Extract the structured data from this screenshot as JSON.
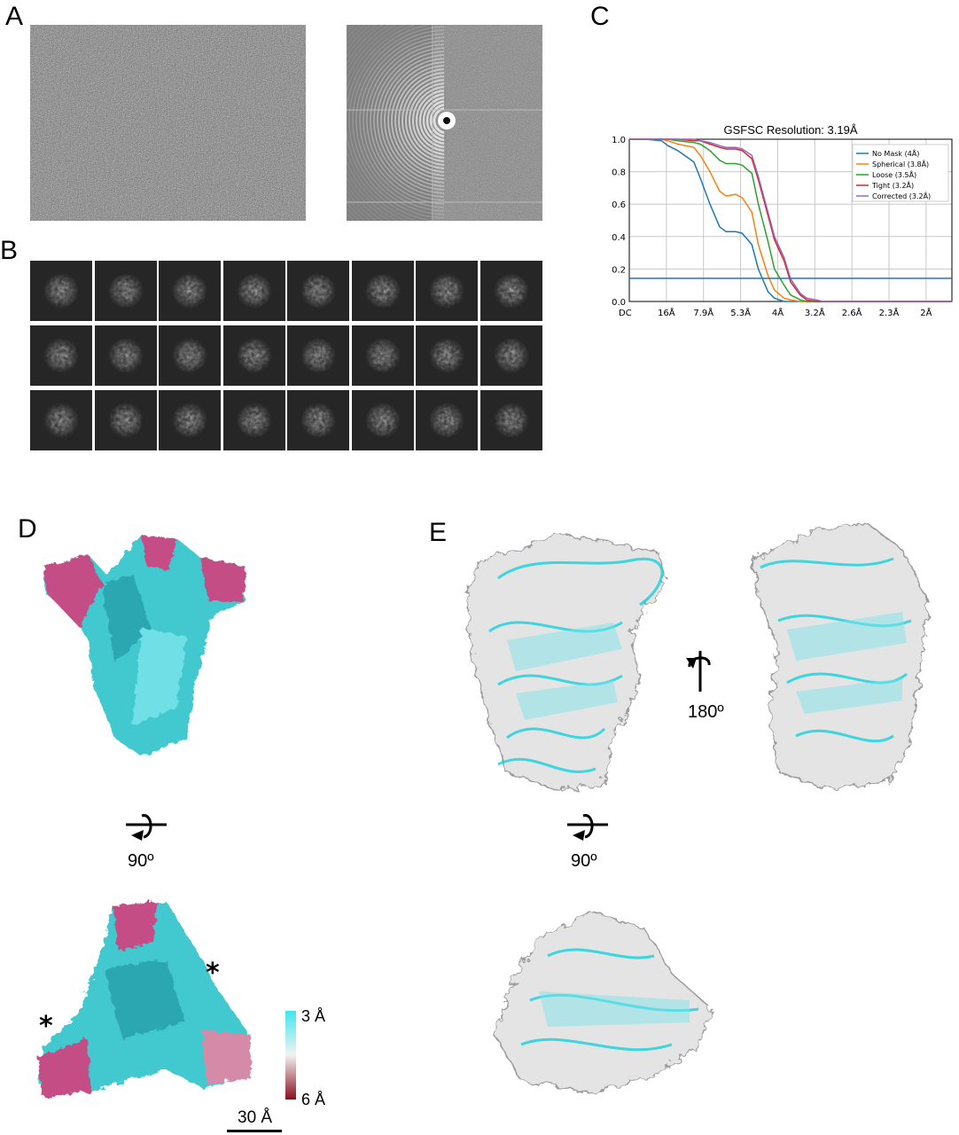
{
  "panels": {
    "a": "A",
    "b": "B",
    "c": "C",
    "d": "D",
    "e": "E"
  },
  "chart_data": {
    "type": "line",
    "title": "GSFSC Resolution: 3.19Å",
    "xlabel": "",
    "ylabel": "",
    "x_tick_labels": [
      "DC",
      "16Å",
      "7.9Å",
      "5.3Å",
      "4Å",
      "3.2Å",
      "2.6Å",
      "2.3Å",
      "2Å"
    ],
    "y_ticks": [
      "0.0",
      "0.2",
      "0.4",
      "0.6",
      "0.8",
      "1.0"
    ],
    "ylim": [
      0,
      1
    ],
    "grid": true,
    "legend_position": "top-right",
    "threshold": 0.143,
    "x": [
      0,
      0.05,
      0.1,
      0.12,
      0.15,
      0.2,
      0.22,
      0.25,
      0.28,
      0.3,
      0.33,
      0.35,
      0.38,
      0.4,
      0.43,
      0.45,
      0.48,
      0.5,
      0.53,
      0.55,
      0.58,
      0.6,
      0.65,
      0.7,
      0.8,
      0.9,
      1.0
    ],
    "series": [
      {
        "name": "No Mask (4Å)",
        "color": "#1f77b4",
        "values": [
          1.0,
          1.0,
          0.99,
          0.96,
          0.93,
          0.86,
          0.76,
          0.6,
          0.46,
          0.43,
          0.43,
          0.42,
          0.35,
          0.2,
          0.06,
          0.02,
          0.0,
          0.0,
          0.0,
          0.0,
          0.0,
          0.0,
          0.0,
          0.0,
          0.0,
          0.0,
          0.0
        ]
      },
      {
        "name": "Spherical (3.8Å)",
        "color": "#ff7f0e",
        "values": [
          1.0,
          1.0,
          1.0,
          0.99,
          0.97,
          0.95,
          0.9,
          0.8,
          0.68,
          0.65,
          0.66,
          0.64,
          0.55,
          0.35,
          0.16,
          0.07,
          0.02,
          0.01,
          0.0,
          0.0,
          0.0,
          0.0,
          0.0,
          0.0,
          0.0,
          0.0,
          0.0
        ]
      },
      {
        "name": "Loose (3.5Å)",
        "color": "#2ca02c",
        "values": [
          1.0,
          1.0,
          1.0,
          1.0,
          0.99,
          0.98,
          0.97,
          0.93,
          0.87,
          0.85,
          0.85,
          0.84,
          0.79,
          0.6,
          0.37,
          0.2,
          0.1,
          0.04,
          0.01,
          0.0,
          0.0,
          0.0,
          0.0,
          0.0,
          0.0,
          0.0,
          0.0
        ]
      },
      {
        "name": "Tight (3.2Å)",
        "color": "#d62728",
        "values": [
          1.0,
          1.0,
          1.0,
          1.0,
          1.0,
          0.99,
          0.99,
          0.97,
          0.95,
          0.94,
          0.94,
          0.93,
          0.88,
          0.75,
          0.53,
          0.38,
          0.25,
          0.12,
          0.04,
          0.01,
          0.0,
          0.0,
          0.0,
          0.0,
          0.0,
          0.0,
          0.0
        ]
      },
      {
        "name": "Corrected (3.2Å)",
        "color": "#9467bd",
        "values": [
          1.0,
          1.0,
          1.0,
          1.0,
          1.0,
          1.0,
          0.99,
          0.98,
          0.96,
          0.95,
          0.95,
          0.94,
          0.9,
          0.77,
          0.55,
          0.4,
          0.27,
          0.14,
          0.05,
          0.02,
          0.01,
          0.0,
          0.0,
          0.0,
          0.0,
          0.0,
          0.0
        ]
      }
    ],
    "threshold_color": "#1f77b4"
  },
  "panel_d": {
    "rotation_label": "90º",
    "asterisk": "*",
    "colorbar_top": "3 Å",
    "colorbar_bottom": "6 Å",
    "scalebar_label": "30 Å",
    "colors": {
      "high": "#3fe6ee",
      "mid": "#f2f2f2",
      "low": "#8a1020",
      "map_cyan": "#43c9d0",
      "map_pink": "#c54d86"
    }
  },
  "panel_e": {
    "rotation_label_180": "180º",
    "rotation_label_90": "90º",
    "colors": {
      "ribbon": "#1fd3e0",
      "density": "#e4e4e4"
    }
  }
}
